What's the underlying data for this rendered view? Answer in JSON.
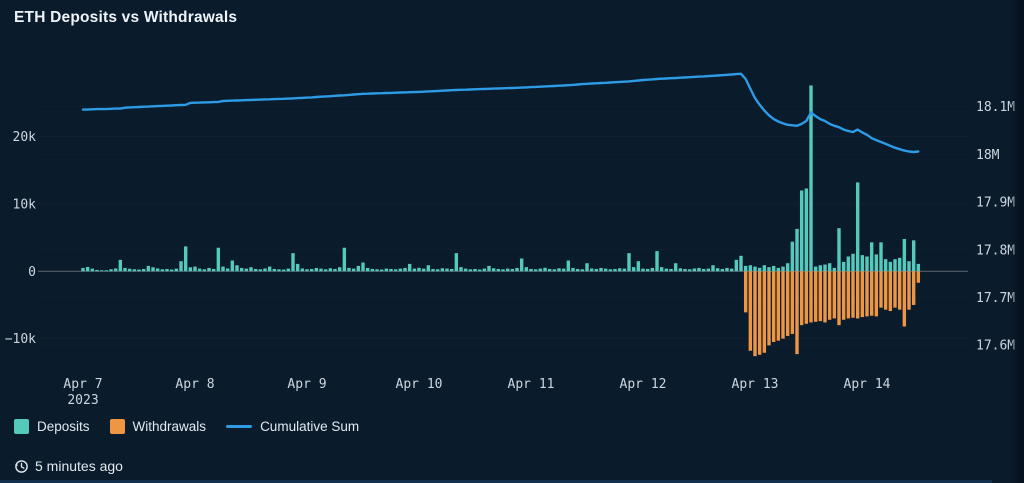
{
  "card": {
    "title": "ETH Deposits vs Withdrawals",
    "updated": "5 minutes ago"
  },
  "legend": {
    "items": [
      {
        "label": "Deposits",
        "color": "#56c9bd",
        "type": "square"
      },
      {
        "label": "Withdrawals",
        "color": "#ee9643",
        "type": "square"
      },
      {
        "label": "Cumulative Sum",
        "color": "#2d9ce5",
        "type": "line"
      }
    ]
  },
  "chart_data": {
    "type": "bar",
    "title": "ETH Deposits vs Withdrawals",
    "x_start": "2023-04-06 20:00",
    "x_interval_hours": 1,
    "x_tick_labels": [
      "Apr 7",
      "Apr 8",
      "Apr 9",
      "Apr 10",
      "Apr 11",
      "Apr 12",
      "Apr 13",
      "Apr 14"
    ],
    "x_first_tick_sublabel": "2023",
    "left_axis": {
      "unit": "ETH",
      "tick_labels": [
        "20k",
        "10k",
        "0",
        "−10k"
      ],
      "tick_values": [
        20000,
        10000,
        0,
        -10000
      ],
      "range": [
        -13000,
        24500
      ]
    },
    "right_axis": {
      "unit": "ETH total",
      "tick_labels": [
        "18.1M",
        "18M",
        "17.9M",
        "17.8M",
        "17.7M",
        "17.6M"
      ],
      "tick_values": [
        18.1,
        18.0,
        17.9,
        17.8,
        17.7,
        17.6
      ]
    },
    "grid": true,
    "legend_position": "bottom-left",
    "series": [
      {
        "name": "Deposits",
        "type": "bar",
        "color": "#56c9bd",
        "axis": "left",
        "start_index": 4,
        "values": [
          500,
          650,
          400,
          200,
          120,
          150,
          300,
          420,
          1700,
          500,
          380,
          300,
          260,
          350,
          800,
          600,
          420,
          300,
          350,
          260,
          400,
          1500,
          3700,
          600,
          700,
          400,
          300,
          500,
          350,
          3500,
          700,
          420,
          1600,
          900,
          500,
          400,
          600,
          350,
          300,
          420,
          700,
          350,
          300,
          260,
          400,
          2700,
          1100,
          420,
          300,
          350,
          500,
          400,
          300,
          450,
          350,
          600,
          3500,
          500,
          400,
          800,
          1300,
          500,
          350,
          300,
          260,
          400,
          350,
          300,
          400,
          500,
          1100,
          400,
          520,
          400,
          900,
          350,
          300,
          450,
          400,
          350,
          2700,
          620,
          400,
          300,
          350,
          260,
          400,
          800,
          450,
          350,
          300,
          400,
          350,
          500,
          1900,
          620,
          350,
          300,
          400,
          520,
          350,
          300,
          450,
          400,
          1600,
          500,
          350,
          300,
          1200,
          420,
          350,
          500,
          400,
          300,
          350,
          450,
          400,
          2700,
          620,
          1500,
          400,
          350,
          500,
          3000,
          620,
          400,
          350,
          1200,
          450,
          350,
          300,
          420,
          500,
          350,
          400,
          900,
          460,
          350,
          500,
          400,
          1700,
          2300,
          800,
          900,
          700,
          520,
          900,
          620,
          800,
          500,
          700,
          1200,
          4400,
          6300,
          12000,
          12300,
          27600,
          700,
          900,
          1000,
          1200,
          500,
          6400,
          1400,
          2200,
          2600,
          13200,
          2400,
          2200,
          4300,
          2500,
          4300,
          1800,
          1400,
          1800,
          2000,
          4800,
          1500,
          4600,
          1100
        ]
      },
      {
        "name": "Withdrawals",
        "type": "bar",
        "color": "#ee9643",
        "axis": "left",
        "start_index": 146,
        "values": [
          -6100,
          -11800,
          -12600,
          -12400,
          -12100,
          -11000,
          -10500,
          -10300,
          -10000,
          -9600,
          -9300,
          -12300,
          -8000,
          -7800,
          -7600,
          -7500,
          -7400,
          -7600,
          -7200,
          -7000,
          -8000,
          -7200,
          -7000,
          -6900,
          -7000,
          -6800,
          -6700,
          -6600,
          -6700,
          -5400,
          -5700,
          -5900,
          -5400,
          -5700,
          -8200,
          -5700,
          -5000,
          -1700
        ]
      },
      {
        "name": "Cumulative Sum",
        "type": "line",
        "color": "#2d9ce5",
        "axis": "right",
        "unit": "M ETH",
        "start_index": 4,
        "values": [
          18.094,
          18.094,
          18.0945,
          18.095,
          18.095,
          18.095,
          18.0955,
          18.096,
          18.096,
          18.098,
          18.0985,
          18.099,
          18.0994,
          18.0999,
          18.1003,
          18.1008,
          18.1012,
          18.1017,
          18.1022,
          18.1026,
          18.1031,
          18.1035,
          18.104,
          18.108,
          18.1083,
          18.1087,
          18.109,
          18.1093,
          18.1097,
          18.11,
          18.112,
          18.1124,
          18.1127,
          18.1131,
          18.1134,
          18.1138,
          18.1141,
          18.1145,
          18.1149,
          18.1152,
          18.1156,
          18.1159,
          18.1163,
          18.1166,
          18.117,
          18.1175,
          18.118,
          18.1185,
          18.119,
          18.1196,
          18.1203,
          18.1209,
          18.1215,
          18.1221,
          18.1228,
          18.1234,
          18.124,
          18.1248,
          18.1255,
          18.1263,
          18.127,
          18.1273,
          18.1277,
          18.128,
          18.1283,
          18.1287,
          18.129,
          18.1293,
          18.1297,
          18.13,
          18.1303,
          18.1307,
          18.131,
          18.1315,
          18.132,
          18.1325,
          18.133,
          18.1335,
          18.134,
          18.1345,
          18.135,
          18.1354,
          18.1357,
          18.1361,
          18.1364,
          18.1368,
          18.1371,
          18.1375,
          18.1379,
          18.1382,
          18.1386,
          18.1389,
          18.1393,
          18.1396,
          18.14,
          18.1405,
          18.141,
          18.1415,
          18.142,
          18.1425,
          18.143,
          18.1435,
          18.144,
          18.1445,
          18.145,
          18.1458,
          18.1465,
          18.1473,
          18.148,
          18.1486,
          18.1491,
          18.1497,
          18.1502,
          18.1508,
          18.1513,
          18.1519,
          18.1524,
          18.153,
          18.154,
          18.155,
          18.156,
          18.1567,
          18.1573,
          18.158,
          18.1586,
          18.1591,
          18.1597,
          18.1602,
          18.1608,
          18.1613,
          18.1619,
          18.1624,
          18.163,
          18.1636,
          18.1642,
          18.1648,
          18.1654,
          18.166,
          18.1668,
          18.1675,
          18.1683,
          18.169,
          18.158,
          18.138,
          18.118,
          18.104,
          18.092,
          18.082,
          18.074,
          18.069,
          18.065,
          18.062,
          18.061,
          18.06,
          18.064,
          18.07,
          18.088,
          18.08,
          18.074,
          18.07,
          18.064,
          18.06,
          18.057,
          18.052,
          18.049,
          18.047,
          18.052,
          18.046,
          18.041,
          18.034,
          18.03,
          18.026,
          18.022,
          18.018,
          18.014,
          18.011,
          18.008,
          18.006,
          18.005,
          18.006
        ]
      }
    ]
  }
}
